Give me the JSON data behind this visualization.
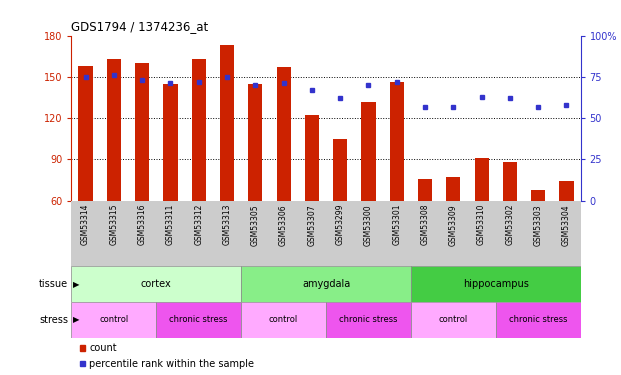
{
  "title": "GDS1794 / 1374236_at",
  "samples": [
    "GSM53314",
    "GSM53315",
    "GSM53316",
    "GSM53311",
    "GSM53312",
    "GSM53313",
    "GSM53305",
    "GSM53306",
    "GSM53307",
    "GSM53299",
    "GSM53300",
    "GSM53301",
    "GSM53308",
    "GSM53309",
    "GSM53310",
    "GSM53302",
    "GSM53303",
    "GSM53304"
  ],
  "counts": [
    158,
    163,
    160,
    145,
    163,
    173,
    145,
    157,
    122,
    105,
    132,
    146,
    76,
    77,
    91,
    88,
    68,
    74
  ],
  "percentiles": [
    75,
    76,
    73,
    71,
    72,
    75,
    70,
    71,
    67,
    62,
    70,
    72,
    57,
    57,
    63,
    62,
    57,
    58
  ],
  "bar_color": "#cc2200",
  "dot_color": "#3333cc",
  "ylim_left": [
    60,
    180
  ],
  "yticks_left": [
    60,
    90,
    120,
    150,
    180
  ],
  "ylim_right": [
    0,
    100
  ],
  "yticks_right": [
    0,
    25,
    50,
    75,
    100
  ],
  "tissue_groups": [
    {
      "label": "cortex",
      "start": 0,
      "end": 6,
      "color": "#ccffcc"
    },
    {
      "label": "amygdala",
      "start": 6,
      "end": 12,
      "color": "#88ee88"
    },
    {
      "label": "hippocampus",
      "start": 12,
      "end": 18,
      "color": "#44cc44"
    }
  ],
  "stress_groups": [
    {
      "label": "control",
      "start": 0,
      "end": 3,
      "color": "#ffaaff"
    },
    {
      "label": "chronic stress",
      "start": 3,
      "end": 6,
      "color": "#ee55ee"
    },
    {
      "label": "control",
      "start": 6,
      "end": 9,
      "color": "#ffaaff"
    },
    {
      "label": "chronic stress",
      "start": 9,
      "end": 12,
      "color": "#ee55ee"
    },
    {
      "label": "control",
      "start": 12,
      "end": 15,
      "color": "#ffaaff"
    },
    {
      "label": "chronic stress",
      "start": 15,
      "end": 18,
      "color": "#ee55ee"
    }
  ],
  "chart_bg": "#ffffff",
  "fig_bg": "#ffffff",
  "sample_band_color": "#cccccc",
  "left_axis_color": "#cc2200",
  "right_axis_color": "#3333cc"
}
